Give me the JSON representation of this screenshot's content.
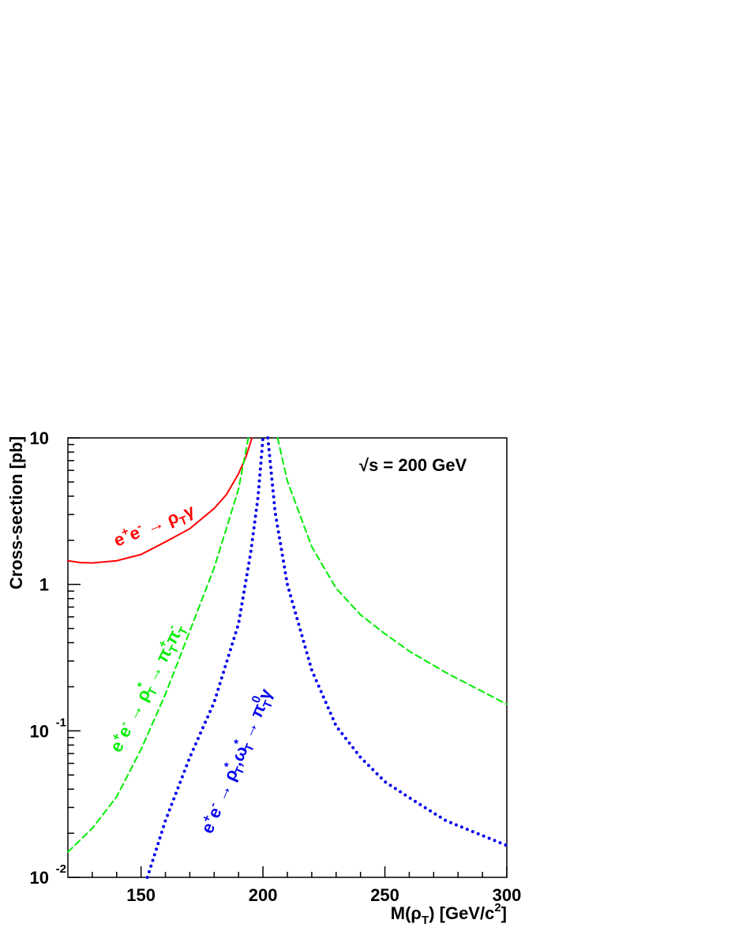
{
  "chart_data": {
    "type": "line",
    "xlabel": [
      "M(ρ",
      "T",
      ") [GeV/c",
      "2",
      "]"
    ],
    "ylabel": "Cross-section [pb]",
    "xlim": [
      120,
      300
    ],
    "xticks": [
      150,
      200,
      250,
      300
    ],
    "xticks_minor": [
      130,
      140,
      160,
      170,
      180,
      190,
      210,
      220,
      230,
      240,
      260,
      270,
      280,
      290
    ],
    "ylim": [
      0.01,
      10
    ],
    "log_y": true,
    "yticks": [
      {
        "value": 0.01,
        "label": "10",
        "superscript": "-2"
      },
      {
        "value": 0.1,
        "label": "10",
        "superscript": "-1"
      },
      1,
      10
    ],
    "yticks_minor": [
      0.02,
      0.03,
      0.04,
      0.05,
      0.06,
      0.07,
      0.08,
      0.09,
      0.2,
      0.3,
      0.4,
      0.5,
      0.6,
      0.7,
      0.8,
      0.9,
      2,
      3,
      4,
      5,
      6,
      7,
      8,
      9
    ],
    "grid": false,
    "series": [
      {
        "color": "#ff0000",
        "style": "solid",
        "x": [
          120,
          125,
          130,
          140,
          150,
          160,
          170,
          180,
          185,
          190,
          193,
          195.5
        ],
        "values": [
          1.45,
          1.41,
          1.4,
          1.45,
          1.6,
          1.95,
          2.4,
          3.3,
          4.1,
          5.7,
          7.4,
          10
        ]
      },
      {
        "color": "#00ee00",
        "style": "dashed",
        "x": [
          120,
          130,
          140,
          150,
          160,
          170,
          180,
          185,
          190,
          194,
          200,
          206,
          210,
          220,
          230,
          240,
          250,
          260,
          275,
          300
        ],
        "values": [
          0.0149,
          0.0216,
          0.0355,
          0.0747,
          0.178,
          0.48,
          1.3,
          2.41,
          4.49,
          10,
          null,
          10,
          5.08,
          1.81,
          0.94,
          0.62,
          0.46,
          0.35,
          0.25,
          0.152
        ]
      },
      {
        "color": "#0000ee",
        "style": "dotted",
        "x": [
          152.6,
          160,
          170,
          180,
          190,
          195,
          198,
          200,
          201,
          202,
          205,
          210,
          220,
          230,
          240,
          250,
          260,
          275,
          300
        ],
        "values": [
          0.01,
          0.0244,
          0.066,
          0.157,
          0.54,
          1.66,
          3.97,
          10,
          null,
          10,
          3.1,
          1.0,
          0.26,
          0.108,
          0.066,
          0.045,
          0.035,
          0.0244,
          0.0165
        ]
      }
    ],
    "annotations": [
      [
        "√s = 200 GeV"
      ],
      [
        "e",
        "+",
        "e",
        "-",
        " → ρ",
        "T",
        "γ"
      ],
      [
        "e",
        "+",
        "e",
        "-",
        " → ρ",
        "*",
        "T",
        " → π",
        "+",
        "T",
        "π",
        "-",
        "T"
      ],
      [
        "e",
        "+",
        "e",
        "-",
        " → ρ",
        "*",
        "T",
        ",ω",
        "*",
        "T",
        " → π",
        "0",
        "T",
        "γ"
      ]
    ]
  }
}
